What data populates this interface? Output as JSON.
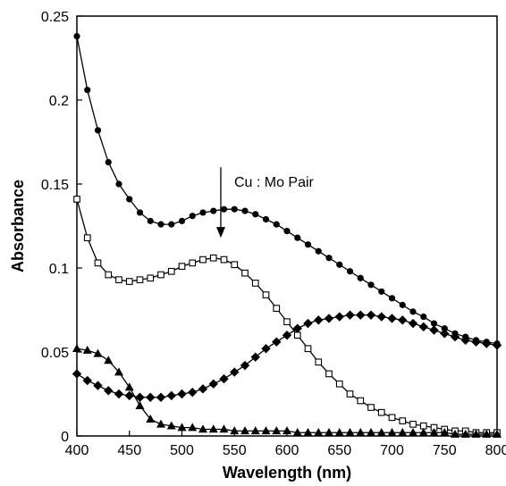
{
  "chart_data": {
    "type": "line",
    "xlabel": "Wavelength (nm)",
    "ylabel": "Absorbance",
    "xlim": [
      400,
      800
    ],
    "ylim": [
      0,
      0.25
    ],
    "x_ticks": [
      "400",
      "450",
      "500",
      "550",
      "600",
      "650",
      "700",
      "750",
      "800"
    ],
    "y_ticks": [
      "0",
      "0.05",
      "0.1",
      "0.15",
      "0.2",
      "0.25"
    ],
    "grid": false,
    "legend": "none",
    "annotation": {
      "text": "Cu : Mo Pair",
      "arrow_x": 537,
      "arrow_from_y": 0.16,
      "arrow_to_y": 0.118
    },
    "series": [
      {
        "marker": "filled-circle",
        "color": "#000000",
        "points": [
          [
            400,
            0.238
          ],
          [
            410,
            0.206
          ],
          [
            420,
            0.182
          ],
          [
            430,
            0.163
          ],
          [
            440,
            0.15
          ],
          [
            450,
            0.141
          ],
          [
            460,
            0.133
          ],
          [
            470,
            0.128
          ],
          [
            480,
            0.126
          ],
          [
            490,
            0.126
          ],
          [
            500,
            0.128
          ],
          [
            510,
            0.131
          ],
          [
            520,
            0.133
          ],
          [
            530,
            0.134
          ],
          [
            540,
            0.135
          ],
          [
            550,
            0.135
          ],
          [
            560,
            0.134
          ],
          [
            570,
            0.132
          ],
          [
            580,
            0.129
          ],
          [
            590,
            0.126
          ],
          [
            600,
            0.122
          ],
          [
            610,
            0.118
          ],
          [
            620,
            0.114
          ],
          [
            630,
            0.11
          ],
          [
            640,
            0.106
          ],
          [
            650,
            0.102
          ],
          [
            660,
            0.098
          ],
          [
            670,
            0.094
          ],
          [
            680,
            0.09
          ],
          [
            690,
            0.086
          ],
          [
            700,
            0.082
          ],
          [
            710,
            0.078
          ],
          [
            720,
            0.074
          ],
          [
            730,
            0.071
          ],
          [
            740,
            0.067
          ],
          [
            750,
            0.064
          ],
          [
            760,
            0.061
          ],
          [
            770,
            0.059
          ],
          [
            780,
            0.057
          ],
          [
            790,
            0.056
          ],
          [
            800,
            0.055
          ]
        ]
      },
      {
        "marker": "open-square",
        "color": "#000000",
        "points": [
          [
            400,
            0.141
          ],
          [
            410,
            0.118
          ],
          [
            420,
            0.103
          ],
          [
            430,
            0.096
          ],
          [
            440,
            0.093
          ],
          [
            450,
            0.092
          ],
          [
            460,
            0.093
          ],
          [
            470,
            0.094
          ],
          [
            480,
            0.096
          ],
          [
            490,
            0.098
          ],
          [
            500,
            0.101
          ],
          [
            510,
            0.103
          ],
          [
            520,
            0.105
          ],
          [
            530,
            0.106
          ],
          [
            540,
            0.105
          ],
          [
            550,
            0.102
          ],
          [
            560,
            0.097
          ],
          [
            570,
            0.091
          ],
          [
            580,
            0.084
          ],
          [
            590,
            0.076
          ],
          [
            600,
            0.068
          ],
          [
            610,
            0.06
          ],
          [
            620,
            0.052
          ],
          [
            630,
            0.044
          ],
          [
            640,
            0.037
          ],
          [
            650,
            0.031
          ],
          [
            660,
            0.025
          ],
          [
            670,
            0.021
          ],
          [
            680,
            0.017
          ],
          [
            690,
            0.014
          ],
          [
            700,
            0.011
          ],
          [
            710,
            0.009
          ],
          [
            720,
            0.007
          ],
          [
            730,
            0.006
          ],
          [
            740,
            0.005
          ],
          [
            750,
            0.004
          ],
          [
            760,
            0.003
          ],
          [
            770,
            0.003
          ],
          [
            780,
            0.002
          ],
          [
            790,
            0.002
          ],
          [
            800,
            0.002
          ]
        ]
      },
      {
        "marker": "filled-diamond",
        "color": "#000000",
        "points": [
          [
            400,
            0.037
          ],
          [
            410,
            0.033
          ],
          [
            420,
            0.03
          ],
          [
            430,
            0.027
          ],
          [
            440,
            0.025
          ],
          [
            450,
            0.024
          ],
          [
            460,
            0.023
          ],
          [
            470,
            0.023
          ],
          [
            480,
            0.023
          ],
          [
            490,
            0.024
          ],
          [
            500,
            0.025
          ],
          [
            510,
            0.026
          ],
          [
            520,
            0.028
          ],
          [
            530,
            0.031
          ],
          [
            540,
            0.034
          ],
          [
            550,
            0.038
          ],
          [
            560,
            0.042
          ],
          [
            570,
            0.047
          ],
          [
            580,
            0.052
          ],
          [
            590,
            0.056
          ],
          [
            600,
            0.06
          ],
          [
            610,
            0.064
          ],
          [
            620,
            0.067
          ],
          [
            630,
            0.069
          ],
          [
            640,
            0.07
          ],
          [
            650,
            0.071
          ],
          [
            660,
            0.072
          ],
          [
            670,
            0.072
          ],
          [
            680,
            0.072
          ],
          [
            690,
            0.071
          ],
          [
            700,
            0.07
          ],
          [
            710,
            0.069
          ],
          [
            720,
            0.067
          ],
          [
            730,
            0.065
          ],
          [
            740,
            0.063
          ],
          [
            750,
            0.061
          ],
          [
            760,
            0.059
          ],
          [
            770,
            0.057
          ],
          [
            780,
            0.056
          ],
          [
            790,
            0.055
          ],
          [
            800,
            0.054
          ]
        ]
      },
      {
        "marker": "filled-triangle",
        "color": "#000000",
        "points": [
          [
            400,
            0.052
          ],
          [
            410,
            0.051
          ],
          [
            420,
            0.049
          ],
          [
            430,
            0.045
          ],
          [
            440,
            0.038
          ],
          [
            450,
            0.029
          ],
          [
            460,
            0.018
          ],
          [
            470,
            0.01
          ],
          [
            480,
            0.007
          ],
          [
            490,
            0.006
          ],
          [
            500,
            0.005
          ],
          [
            510,
            0.005
          ],
          [
            520,
            0.004
          ],
          [
            530,
            0.004
          ],
          [
            540,
            0.004
          ],
          [
            550,
            0.003
          ],
          [
            560,
            0.003
          ],
          [
            570,
            0.003
          ],
          [
            580,
            0.003
          ],
          [
            590,
            0.003
          ],
          [
            600,
            0.003
          ],
          [
            610,
            0.002
          ],
          [
            620,
            0.002
          ],
          [
            630,
            0.002
          ],
          [
            640,
            0.002
          ],
          [
            650,
            0.002
          ],
          [
            660,
            0.002
          ],
          [
            670,
            0.002
          ],
          [
            680,
            0.002
          ],
          [
            690,
            0.002
          ],
          [
            700,
            0.002
          ],
          [
            710,
            0.002
          ],
          [
            720,
            0.002
          ],
          [
            730,
            0.002
          ],
          [
            740,
            0.002
          ],
          [
            750,
            0.002
          ],
          [
            760,
            0.001
          ],
          [
            770,
            0.001
          ],
          [
            780,
            0.001
          ],
          [
            790,
            0.001
          ],
          [
            800,
            0.001
          ]
        ]
      }
    ]
  }
}
